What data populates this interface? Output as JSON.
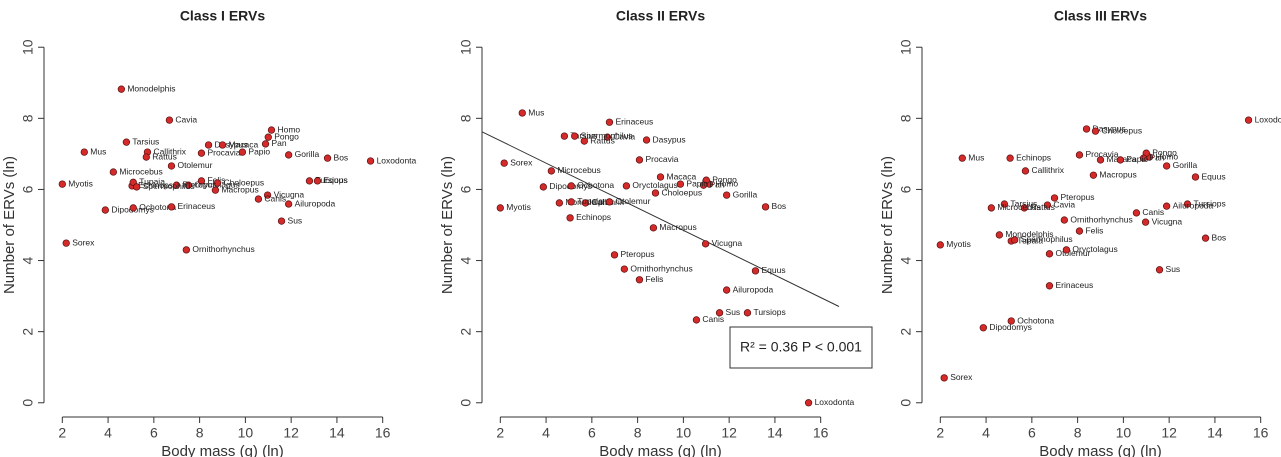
{
  "chart_data": [
    {
      "type": "scatter",
      "title": "Class I ERVs",
      "xlabel": "Body mass (g)  (ln)",
      "ylabel": "Number of ERVs (ln)",
      "color": "#d42a2a",
      "labels": [
        "Monodelphis",
        "Cavia",
        "Mus",
        "Tarsius",
        "Homo",
        "Pongo",
        "Dasypus",
        "Macaca",
        "Pan",
        "Callithrix",
        "Rattus",
        "Procavia",
        "Papio",
        "Gorilla",
        "Bos",
        "Loxodonta",
        "Microcebus",
        "Otolemur",
        "Myotis",
        "Echinops",
        "Tupaia",
        "Oryctolagus",
        "Felis",
        "Choloepus",
        "Pteropus",
        "Spermophilus",
        "Tursiops",
        "Equus",
        "Vicugna",
        "Macropus",
        "Canis",
        "Ailuropoda",
        "Dipodomys",
        "Ochotona",
        "Erinaceus",
        "Sus",
        "Sorex",
        "Ornithorhynchus"
      ],
      "x": [
        4.58,
        6.68,
        2.96,
        4.8,
        11.14,
        11.0,
        8.39,
        9.0,
        10.88,
        5.72,
        5.67,
        8.08,
        9.87,
        11.89,
        13.59,
        15.47,
        4.23,
        6.77,
        2.0,
        5.05,
        5.1,
        7.51,
        8.08,
        8.78,
        6.99,
        5.25,
        12.8,
        13.15,
        10.97,
        8.69,
        10.57,
        11.89,
        3.88,
        5.1,
        6.77,
        11.58,
        2.17,
        7.42
      ],
      "values": [
        8.82,
        7.95,
        7.05,
        7.33,
        7.67,
        7.47,
        7.25,
        7.25,
        7.28,
        7.05,
        6.91,
        7.02,
        7.05,
        6.97,
        6.88,
        6.8,
        6.49,
        6.66,
        6.15,
        6.1,
        6.2,
        6.12,
        6.24,
        6.18,
        6.12,
        6.07,
        6.24,
        6.24,
        5.84,
        5.98,
        5.73,
        5.59,
        5.42,
        5.48,
        5.51,
        5.11,
        4.49,
        4.3
      ],
      "xlim": [
        1.2,
        16.8
      ],
      "ylim": [
        -0.4,
        10.4
      ],
      "xticks": [
        2,
        4,
        6,
        8,
        10,
        12,
        14,
        16
      ],
      "yticks": [
        0,
        2,
        4,
        6,
        8,
        10
      ]
    },
    {
      "type": "scatter",
      "title": "Class II ERVs",
      "xlabel": "Body mass (g)  (ln)",
      "ylabel": "Number of ERVs (ln)",
      "color": "#d42a2a",
      "labels": [
        "Monodelphis",
        "Cavia",
        "Mus",
        "Tarsius",
        "Homo",
        "Pongo",
        "Dasypus",
        "Macaca",
        "Pan",
        "Callithrix",
        "Rattus",
        "Procavia",
        "Papio",
        "Gorilla",
        "Bos",
        "Loxodonta",
        "Microcebus",
        "Otolemur",
        "Myotis",
        "Echinops",
        "Tupaia",
        "Oryctolagus",
        "Felis",
        "Choloepus",
        "Pteropus",
        "Spermophilus",
        "Tursiops",
        "Equus",
        "Vicugna",
        "Macropus",
        "Canis",
        "Ailuropoda",
        "Dipodomys",
        "Ochotona",
        "Erinaceus",
        "Sus",
        "Sorex",
        "Ornithorhynchus"
      ],
      "x": [
        4.58,
        6.68,
        2.96,
        4.8,
        11.14,
        11.0,
        8.39,
        9.0,
        10.88,
        5.72,
        5.67,
        8.08,
        9.87,
        11.89,
        13.59,
        15.47,
        4.23,
        6.77,
        2.0,
        5.05,
        5.1,
        7.51,
        8.08,
        8.78,
        6.99,
        5.25,
        12.8,
        13.15,
        10.97,
        8.69,
        10.57,
        11.89,
        3.88,
        5.1,
        6.77,
        11.58,
        2.17,
        7.42
      ],
      "values": [
        5.62,
        7.47,
        8.15,
        7.5,
        6.15,
        6.26,
        7.39,
        6.35,
        6.12,
        5.62,
        7.36,
        6.83,
        6.15,
        5.84,
        5.51,
        0.0,
        6.52,
        5.65,
        5.48,
        5.2,
        5.65,
        6.1,
        3.46,
        5.9,
        4.16,
        7.5,
        2.53,
        3.71,
        4.47,
        4.92,
        2.33,
        3.17,
        6.07,
        6.1,
        7.89,
        2.53,
        6.74,
        3.76
      ],
      "xlim": [
        1.2,
        16.8
      ],
      "ylim": [
        -0.4,
        10.4
      ],
      "xticks": [
        2,
        4,
        6,
        8,
        10,
        12,
        14,
        16
      ],
      "yticks": [
        0,
        2,
        4,
        6,
        8,
        10
      ],
      "fit": {
        "intercept": 8.0,
        "slope": -0.315
      },
      "annotation": "R² = 0.36 P < 0.001"
    },
    {
      "type": "scatter",
      "title": "Class III ERVs",
      "xlabel": "Body mass (g)  (ln)",
      "ylabel": "Number of ERVs (ln)",
      "color": "#d42a2a",
      "labels": [
        "Monodelphis",
        "Cavia",
        "Mus",
        "Tarsius",
        "Homo",
        "Pongo",
        "Dasypus",
        "Macaca",
        "Pan",
        "Callithrix",
        "Rattus",
        "Procavia",
        "Papio",
        "Gorilla",
        "Bos",
        "Loxodonta",
        "Microcebus",
        "Otolemur",
        "Myotis",
        "Echinops",
        "Tupaia",
        "Oryctolagus",
        "Felis",
        "Choloepus",
        "Pteropus",
        "Spermophilus",
        "Tursiops",
        "Equus",
        "Vicugna",
        "Macropus",
        "Canis",
        "Ailuropoda",
        "Dipodomys",
        "Ochotona",
        "Erinaceus",
        "Sus",
        "Sorex",
        "Ornithorhynchus"
      ],
      "x": [
        4.58,
        6.68,
        2.96,
        4.8,
        11.14,
        11.0,
        8.39,
        9.0,
        10.88,
        5.72,
        5.67,
        8.08,
        9.87,
        11.89,
        13.59,
        15.47,
        4.23,
        6.77,
        2.0,
        5.05,
        5.1,
        7.51,
        8.08,
        8.78,
        6.99,
        5.25,
        12.8,
        13.15,
        10.97,
        8.69,
        10.57,
        11.89,
        3.88,
        5.1,
        6.77,
        11.58,
        2.17,
        7.42
      ],
      "values": [
        4.72,
        5.56,
        6.88,
        5.59,
        6.91,
        7.02,
        7.7,
        6.83,
        6.88,
        6.52,
        5.48,
        6.97,
        6.83,
        6.66,
        4.63,
        7.95,
        5.48,
        4.19,
        4.44,
        6.88,
        4.55,
        4.3,
        4.83,
        7.64,
        5.76,
        4.58,
        5.59,
        6.35,
        5.08,
        6.4,
        5.34,
        5.53,
        2.11,
        2.3,
        3.29,
        3.74,
        0.7,
        5.14
      ],
      "xlim": [
        1.2,
        16.8
      ],
      "ylim": [
        -0.4,
        10.4
      ],
      "xticks": [
        2,
        4,
        6,
        8,
        10,
        12,
        14,
        16
      ],
      "yticks": [
        0,
        2,
        4,
        6,
        8,
        10
      ]
    }
  ]
}
